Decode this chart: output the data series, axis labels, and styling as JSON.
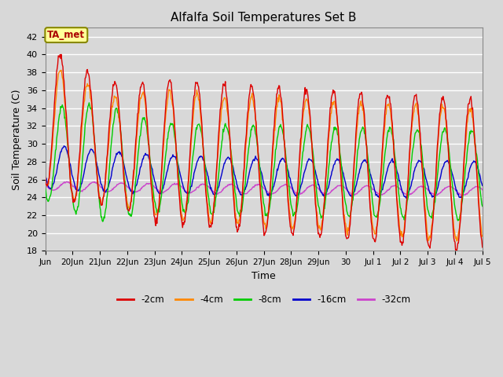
{
  "title": "Alfalfa Soil Temperatures Set B",
  "xlabel": "Time",
  "ylabel": "Soil Temperature (C)",
  "ylim": [
    18,
    43
  ],
  "yticks": [
    18,
    20,
    22,
    24,
    26,
    28,
    30,
    32,
    34,
    36,
    38,
    40,
    42
  ],
  "bg_color": "#d8d8d8",
  "plot_bg_color": "#d8d8d8",
  "grid_color": "#ffffff",
  "colors": {
    "-2cm": "#dd0000",
    "-4cm": "#ff8800",
    "-8cm": "#00cc00",
    "-16cm": "#0000cc",
    "-32cm": "#cc44cc"
  },
  "legend_labels": [
    "-2cm",
    "-4cm",
    "-8cm",
    "-16cm",
    "-32cm"
  ],
  "ta_met_label": "TA_met",
  "ta_met_color": "#aa0000",
  "ta_met_bg": "#ffff99",
  "tick_positions": [
    0,
    1,
    2,
    3,
    4,
    5,
    6,
    7,
    8,
    9,
    10,
    11,
    12,
    13,
    14,
    15,
    16
  ],
  "tick_labels": [
    "Jun",
    "20Jun",
    "21Jun",
    "22Jun",
    "23Jun",
    "24Jun",
    "25Jun",
    "26Jun",
    "27Jun",
    "28Jun",
    "29Jun",
    "30",
    "Jul 1",
    "Jul 2",
    "Jul 3",
    "Jul 4",
    "Jul 5"
  ]
}
